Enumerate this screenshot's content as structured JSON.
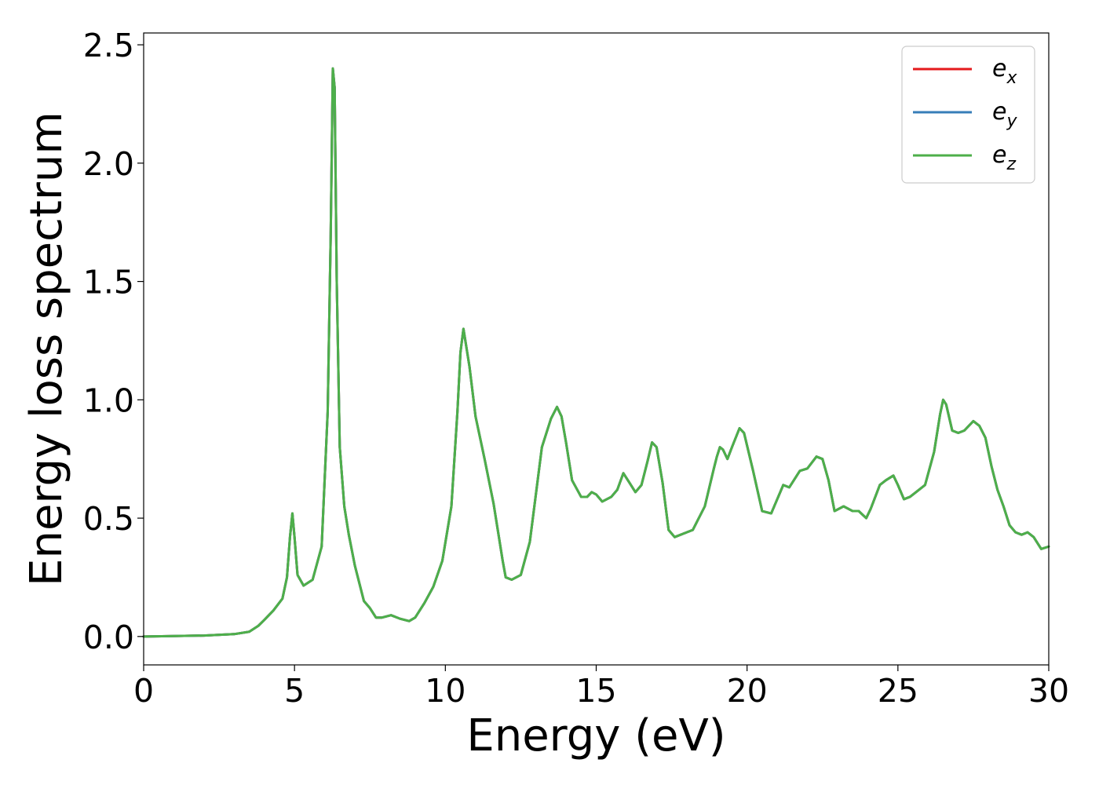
{
  "chart_data": {
    "type": "line",
    "xlabel": "Energy (eV)",
    "ylabel": "Energy loss spectrum",
    "xlim": [
      0,
      30
    ],
    "ylim": [
      -0.12,
      2.55
    ],
    "x_ticks": [
      0,
      5,
      10,
      15,
      20,
      25,
      30
    ],
    "x_tick_labels": [
      "0",
      "5",
      "10",
      "15",
      "20",
      "25",
      "30"
    ],
    "y_ticks": [
      0.0,
      0.5,
      1.0,
      1.5,
      2.0,
      2.5
    ],
    "y_tick_labels": [
      "0.0",
      "0.5",
      "1.0",
      "1.5",
      "2.0",
      "2.5"
    ],
    "grid": false,
    "legend_position": "top-right",
    "x": [
      0,
      1,
      2,
      3,
      3.5,
      3.8,
      4.0,
      4.3,
      4.6,
      4.75,
      4.85,
      4.93,
      5.0,
      5.1,
      5.3,
      5.6,
      5.9,
      6.1,
      6.2,
      6.27,
      6.33,
      6.4,
      6.5,
      6.65,
      6.8,
      7.0,
      7.3,
      7.5,
      7.7,
      7.9,
      8.2,
      8.5,
      8.8,
      9.0,
      9.3,
      9.6,
      9.9,
      10.2,
      10.4,
      10.5,
      10.6,
      10.8,
      11.0,
      11.3,
      11.6,
      11.9,
      12.0,
      12.2,
      12.5,
      12.8,
      13.0,
      13.2,
      13.5,
      13.7,
      13.85,
      14.0,
      14.2,
      14.5,
      14.7,
      14.85,
      15.0,
      15.2,
      15.5,
      15.7,
      15.9,
      16.1,
      16.3,
      16.5,
      16.7,
      16.85,
      17.0,
      17.2,
      17.4,
      17.6,
      18.0,
      18.2,
      18.6,
      18.9,
      19.0,
      19.1,
      19.2,
      19.35,
      19.5,
      19.75,
      19.9,
      20.2,
      20.5,
      20.8,
      21.0,
      21.2,
      21.4,
      21.6,
      21.75,
      22.0,
      22.3,
      22.5,
      22.7,
      22.9,
      23.2,
      23.5,
      23.7,
      23.95,
      24.1,
      24.4,
      24.6,
      24.85,
      25.0,
      25.2,
      25.4,
      25.6,
      25.9,
      26.2,
      26.4,
      26.5,
      26.6,
      26.8,
      27.0,
      27.2,
      27.5,
      27.7,
      27.9,
      28.1,
      28.3,
      28.5,
      28.7,
      28.9,
      29.1,
      29.3,
      29.5,
      29.75,
      30.0
    ],
    "series": [
      {
        "name": "e_x",
        "label_base": "e",
        "label_sub": "x",
        "color": "#e41a1c",
        "y": [
          0.0,
          0.002,
          0.004,
          0.01,
          0.02,
          0.045,
          0.07,
          0.11,
          0.16,
          0.25,
          0.42,
          0.52,
          0.42,
          0.26,
          0.215,
          0.24,
          0.38,
          0.95,
          1.7,
          2.4,
          2.32,
          1.5,
          0.8,
          0.55,
          0.43,
          0.3,
          0.15,
          0.12,
          0.08,
          0.08,
          0.09,
          0.075,
          0.065,
          0.08,
          0.14,
          0.21,
          0.32,
          0.55,
          0.95,
          1.2,
          1.3,
          1.14,
          0.93,
          0.75,
          0.56,
          0.32,
          0.25,
          0.24,
          0.26,
          0.4,
          0.6,
          0.8,
          0.92,
          0.97,
          0.93,
          0.82,
          0.66,
          0.59,
          0.59,
          0.61,
          0.6,
          0.57,
          0.59,
          0.62,
          0.69,
          0.65,
          0.61,
          0.64,
          0.74,
          0.82,
          0.8,
          0.65,
          0.45,
          0.42,
          0.44,
          0.45,
          0.55,
          0.71,
          0.76,
          0.8,
          0.79,
          0.75,
          0.8,
          0.88,
          0.86,
          0.7,
          0.53,
          0.52,
          0.58,
          0.64,
          0.63,
          0.67,
          0.7,
          0.71,
          0.76,
          0.75,
          0.66,
          0.53,
          0.55,
          0.53,
          0.53,
          0.5,
          0.54,
          0.64,
          0.66,
          0.68,
          0.64,
          0.58,
          0.59,
          0.61,
          0.64,
          0.78,
          0.94,
          1.0,
          0.98,
          0.87,
          0.86,
          0.87,
          0.91,
          0.89,
          0.84,
          0.72,
          0.62,
          0.55,
          0.47,
          0.44,
          0.43,
          0.44,
          0.42,
          0.37,
          0.38
        ]
      },
      {
        "name": "e_y",
        "label_base": "e",
        "label_sub": "y",
        "color": "#377eb8",
        "y": [
          0.0,
          0.002,
          0.004,
          0.01,
          0.02,
          0.045,
          0.07,
          0.11,
          0.16,
          0.25,
          0.42,
          0.52,
          0.42,
          0.26,
          0.215,
          0.24,
          0.38,
          0.95,
          1.7,
          2.4,
          2.32,
          1.5,
          0.8,
          0.55,
          0.43,
          0.3,
          0.15,
          0.12,
          0.08,
          0.08,
          0.09,
          0.075,
          0.065,
          0.08,
          0.14,
          0.21,
          0.32,
          0.55,
          0.95,
          1.2,
          1.3,
          1.14,
          0.93,
          0.75,
          0.56,
          0.32,
          0.25,
          0.24,
          0.26,
          0.4,
          0.6,
          0.8,
          0.92,
          0.97,
          0.93,
          0.82,
          0.66,
          0.59,
          0.59,
          0.61,
          0.6,
          0.57,
          0.59,
          0.62,
          0.69,
          0.65,
          0.61,
          0.64,
          0.74,
          0.82,
          0.8,
          0.65,
          0.45,
          0.42,
          0.44,
          0.45,
          0.55,
          0.71,
          0.76,
          0.8,
          0.79,
          0.75,
          0.8,
          0.88,
          0.86,
          0.7,
          0.53,
          0.52,
          0.58,
          0.64,
          0.63,
          0.67,
          0.7,
          0.71,
          0.76,
          0.75,
          0.66,
          0.53,
          0.55,
          0.53,
          0.53,
          0.5,
          0.54,
          0.64,
          0.66,
          0.68,
          0.64,
          0.58,
          0.59,
          0.61,
          0.64,
          0.78,
          0.94,
          1.0,
          0.98,
          0.87,
          0.86,
          0.87,
          0.91,
          0.89,
          0.84,
          0.72,
          0.62,
          0.55,
          0.47,
          0.44,
          0.43,
          0.44,
          0.42,
          0.37,
          0.38
        ]
      },
      {
        "name": "e_z",
        "label_base": "e",
        "label_sub": "z",
        "color": "#4daf4a",
        "y": [
          0.0,
          0.002,
          0.004,
          0.01,
          0.02,
          0.045,
          0.07,
          0.11,
          0.16,
          0.25,
          0.42,
          0.52,
          0.42,
          0.26,
          0.215,
          0.24,
          0.38,
          0.95,
          1.7,
          2.4,
          2.32,
          1.5,
          0.8,
          0.55,
          0.43,
          0.3,
          0.15,
          0.12,
          0.08,
          0.08,
          0.09,
          0.075,
          0.065,
          0.08,
          0.14,
          0.21,
          0.32,
          0.55,
          0.95,
          1.2,
          1.3,
          1.14,
          0.93,
          0.75,
          0.56,
          0.32,
          0.25,
          0.24,
          0.26,
          0.4,
          0.6,
          0.8,
          0.92,
          0.97,
          0.93,
          0.82,
          0.66,
          0.59,
          0.59,
          0.61,
          0.6,
          0.57,
          0.59,
          0.62,
          0.69,
          0.65,
          0.61,
          0.64,
          0.74,
          0.82,
          0.8,
          0.65,
          0.45,
          0.42,
          0.44,
          0.45,
          0.55,
          0.71,
          0.76,
          0.8,
          0.79,
          0.75,
          0.8,
          0.88,
          0.86,
          0.7,
          0.53,
          0.52,
          0.58,
          0.64,
          0.63,
          0.67,
          0.7,
          0.71,
          0.76,
          0.75,
          0.66,
          0.53,
          0.55,
          0.53,
          0.53,
          0.5,
          0.54,
          0.64,
          0.66,
          0.68,
          0.64,
          0.58,
          0.59,
          0.61,
          0.64,
          0.78,
          0.94,
          1.0,
          0.98,
          0.87,
          0.86,
          0.87,
          0.91,
          0.89,
          0.84,
          0.72,
          0.62,
          0.55,
          0.47,
          0.44,
          0.43,
          0.44,
          0.42,
          0.37,
          0.38
        ]
      }
    ]
  }
}
